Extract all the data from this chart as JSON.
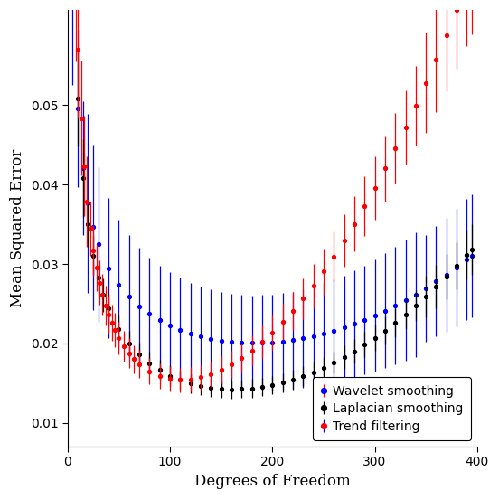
{
  "xlabel": "Degrees of Freedom",
  "ylabel": "Mean Squared Error",
  "xlim": [
    0,
    400
  ],
  "ylim": [
    0.007,
    0.062
  ],
  "yticks": [
    0.01,
    0.02,
    0.03,
    0.04,
    0.05
  ],
  "xticks": [
    0,
    100,
    200,
    300,
    400
  ],
  "legend_labels": [
    "Trend filtering",
    "Laplacian smoothing",
    "Wavelet smoothing"
  ],
  "colors": {
    "trend": "#FF0000",
    "laplacian": "#000000",
    "wavelet": "#0000FF"
  },
  "background": "#FFFFFF"
}
